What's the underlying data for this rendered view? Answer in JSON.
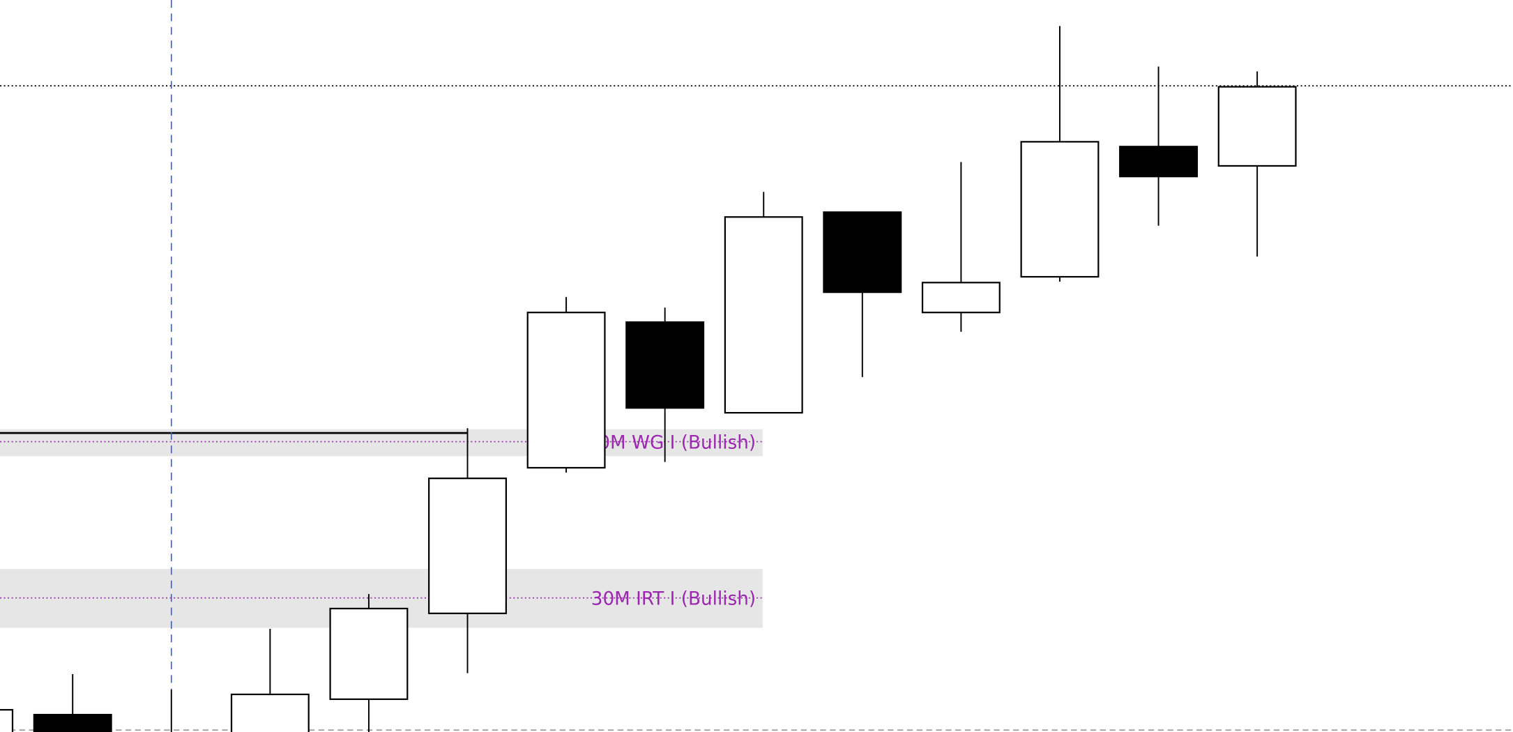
{
  "chart_data": {
    "type": "candlestick",
    "title": "",
    "xlabel": "",
    "ylabel": "",
    "ylim": [
      0,
      75.9
    ],
    "grid": false,
    "colors": {
      "bullish": "#ffffff",
      "bearish": "#000000",
      "outline": "#000000",
      "zone": "#e6e6e6",
      "zone_line": "#9c27b0",
      "vertical_marker": "#3f5fd8",
      "bottom_line": "#999999"
    },
    "candles": [
      {
        "i": 0,
        "open": -1.1,
        "high": 2.3,
        "low": -2,
        "close": 2.3
      },
      {
        "i": 1,
        "open": 1.8,
        "high": 6.0,
        "low": -2,
        "close": -1.5
      },
      {
        "i": 2,
        "open": -2,
        "high": 4.4,
        "low": -3,
        "close": -1
      },
      {
        "i": 3,
        "open": -1,
        "high": 10.7,
        "low": -2,
        "close": 3.9
      },
      {
        "i": 4,
        "open": 3.4,
        "high": 14.3,
        "low": -2,
        "close": 12.8
      },
      {
        "i": 5,
        "open": 12.3,
        "high": 31.5,
        "low": 6.1,
        "close": 26.3
      },
      {
        "i": 6,
        "open": 27.4,
        "high": 45.1,
        "low": 26.9,
        "close": 43.5
      },
      {
        "i": 7,
        "open": 42.5,
        "high": 44.0,
        "low": 28.0,
        "close": 33.6
      },
      {
        "i": 8,
        "open": 33.1,
        "high": 56.0,
        "low": 33.1,
        "close": 53.4
      },
      {
        "i": 9,
        "open": 53.9,
        "high": 53.9,
        "low": 36.8,
        "close": 45.6
      },
      {
        "i": 10,
        "open": 43.5,
        "high": 59.1,
        "low": 41.5,
        "close": 46.6
      },
      {
        "i": 11,
        "open": 47.2,
        "high": 73.2,
        "low": 46.7,
        "close": 61.2
      },
      {
        "i": 12,
        "open": 60.7,
        "high": 69.0,
        "low": 52.5,
        "close": 57.6
      },
      {
        "i": 13,
        "open": 58.7,
        "high": 68.5,
        "low": 49.3,
        "close": 66.9
      }
    ],
    "levels": [
      {
        "name": "dotted-price-line",
        "price": 67.0,
        "style": "dotted",
        "color": "#000000"
      },
      {
        "name": "bottom-dashed-line",
        "price": 0.2,
        "style": "dashed",
        "color": "#999999"
      }
    ],
    "solid_line": {
      "price": 31.0,
      "to_bar": 5
    },
    "vertical_marker_bar": 2,
    "zones": [
      {
        "label": "30M WG I (Bullish)",
        "top": 31.4,
        "bottom": 28.6,
        "mid": 30.1,
        "to_bar": 8
      },
      {
        "label": "30M IRT I (Bullish)",
        "top": 16.9,
        "bottom": 10.8,
        "mid": 13.9,
        "to_bar": 8
      }
    ]
  }
}
